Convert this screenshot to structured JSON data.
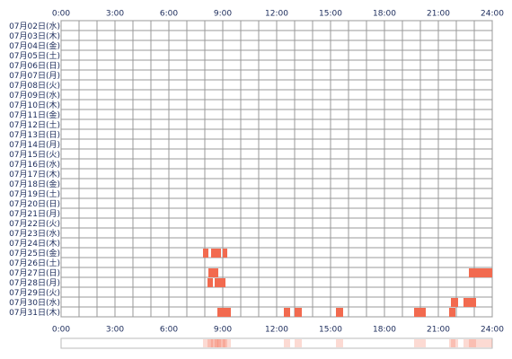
{
  "chart_data": {
    "type": "timeline",
    "categories": [
      "07月02日(水)",
      "07月03日(木)",
      "07月04日(金)",
      "07月05日(土)",
      "07月06日(日)",
      "07月07日(月)",
      "07月08日(火)",
      "07月09日(水)",
      "07月10日(木)",
      "07月11日(金)",
      "07月12日(土)",
      "07月13日(日)",
      "07月14日(月)",
      "07月15日(火)",
      "07月16日(水)",
      "07月17日(木)",
      "07月18日(金)",
      "07月19日(土)",
      "07月20日(日)",
      "07月21日(月)",
      "07月22日(火)",
      "07月23日(水)",
      "07月24日(木)",
      "07月25日(金)",
      "07月26日(土)",
      "07月27日(日)",
      "07月28日(月)",
      "07月29日(火)",
      "07月30日(水)",
      "07月31日(木)"
    ],
    "values": [
      [],
      [],
      [],
      [],
      [],
      [],
      [],
      [],
      [],
      [],
      [],
      [],
      [],
      [],
      [],
      [],
      [],
      [],
      [],
      [],
      [],
      [],
      [],
      [
        [
          7.9,
          8.2
        ],
        [
          8.35,
          8.9
        ],
        [
          9.0,
          9.25
        ]
      ],
      [],
      [
        [
          8.2,
          8.75
        ],
        [
          22.7,
          24
        ]
      ],
      [
        [
          8.15,
          8.45
        ],
        [
          8.55,
          9.15
        ]
      ],
      [],
      [
        [
          21.7,
          22.1
        ],
        [
          22.4,
          23.1
        ]
      ],
      [
        [
          8.7,
          9.45
        ],
        [
          12.4,
          12.75
        ],
        [
          13.0,
          13.4
        ],
        [
          15.3,
          15.7
        ],
        [
          19.65,
          20.3
        ],
        [
          21.6,
          21.95
        ]
      ]
    ],
    "color": "#f26a4f",
    "xlim": [
      0,
      24
    ],
    "xticks": [
      {
        "value": 0,
        "label": "0:00"
      },
      {
        "value": 3,
        "label": "3:00"
      },
      {
        "value": 6,
        "label": "6:00"
      },
      {
        "value": 9,
        "label": "9:00"
      },
      {
        "value": 12,
        "label": "12:00"
      },
      {
        "value": 15,
        "label": "15:00"
      },
      {
        "value": 18,
        "label": "18:00"
      },
      {
        "value": 21,
        "label": "21:00"
      },
      {
        "value": 24,
        "label": "24:00"
      }
    ],
    "minor_xticks": [
      0,
      1,
      2,
      3,
      4,
      5,
      6,
      7,
      8,
      9,
      10,
      11,
      12,
      13,
      14,
      15,
      16,
      17,
      18,
      19,
      20,
      21,
      22,
      23,
      24
    ],
    "grid": true
  }
}
